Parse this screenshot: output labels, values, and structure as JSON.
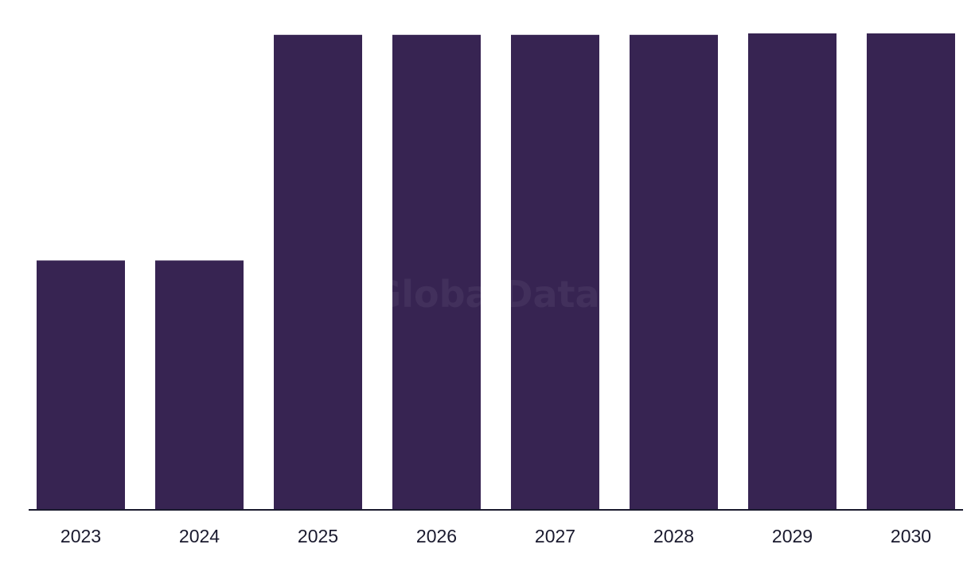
{
  "watermark": "GlobalData",
  "colors": {
    "bar": "#372452",
    "axis": "#1a1a2e",
    "background": "#ffffff"
  },
  "chart_data": {
    "type": "bar",
    "categories": [
      "2023",
      "2024",
      "2025",
      "2026",
      "2027",
      "2028",
      "2029",
      "2030"
    ],
    "values": [
      52.5,
      52.5,
      100,
      100,
      100,
      100,
      100.3,
      100.3
    ],
    "title": "",
    "xlabel": "",
    "ylabel": "",
    "ylim": [
      0,
      100.3
    ],
    "grid": false,
    "legend": "none"
  }
}
